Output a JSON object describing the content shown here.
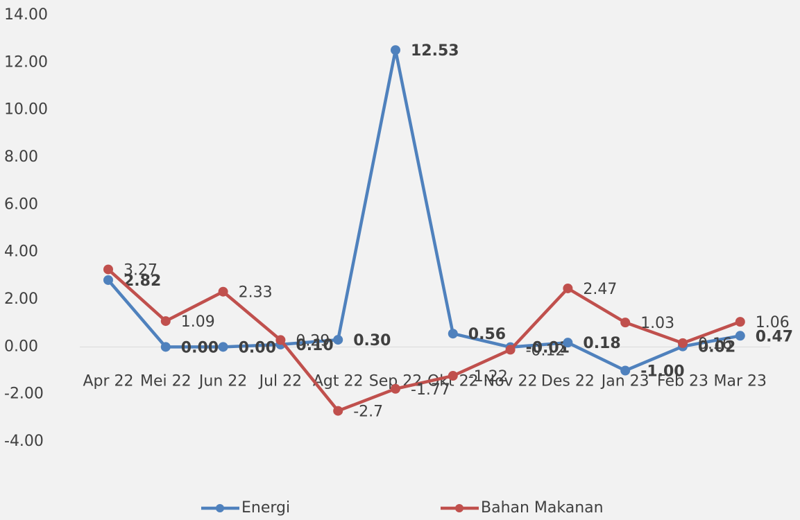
{
  "chart_data": {
    "type": "line",
    "categories": [
      "Apr 22",
      "Mei 22",
      "Jun 22",
      "Jul 22",
      "Agt 22",
      "Sep 22",
      "Okt 22",
      "Nov 22",
      "Des 22",
      "Jan 23",
      "Feb 23",
      "Mar 23"
    ],
    "series": [
      {
        "name": "Energi",
        "color": "#4f81bd",
        "label_color": "#0070c0",
        "values": [
          2.82,
          0.0,
          0.0,
          0.1,
          0.3,
          12.53,
          0.56,
          -0.01,
          0.18,
          -1.0,
          0.02,
          0.47
        ],
        "value_labels": [
          "2.82",
          "0.00",
          "0.00",
          "0.10",
          "0.30",
          "12.53",
          "0.56",
          "-0.01",
          "0.18",
          "-1.00",
          "0.02",
          "0.47"
        ]
      },
      {
        "name": "Bahan Makanan",
        "color": "#c0504d",
        "label_color": "#ff0000",
        "values": [
          3.27,
          1.09,
          2.33,
          0.29,
          -2.7,
          -1.77,
          -1.22,
          -0.12,
          2.47,
          1.03,
          0.16,
          1.06
        ]
      }
    ],
    "ylim": [
      -4,
      14
    ],
    "yticks": [
      {
        "value": -4,
        "label": "-4.00"
      },
      {
        "value": -2,
        "label": "-2.00"
      },
      {
        "value": 0,
        "label": "0.00"
      },
      {
        "value": 2,
        "label": "2.00"
      },
      {
        "value": 4,
        "label": "4.00"
      },
      {
        "value": 6,
        "label": "6.00"
      },
      {
        "value": 8,
        "label": "8.00"
      },
      {
        "value": 10,
        "label": "10.00"
      },
      {
        "value": 12,
        "label": "12.00"
      },
      {
        "value": 14,
        "label": "14.00"
      }
    ],
    "legend": "bottom"
  }
}
